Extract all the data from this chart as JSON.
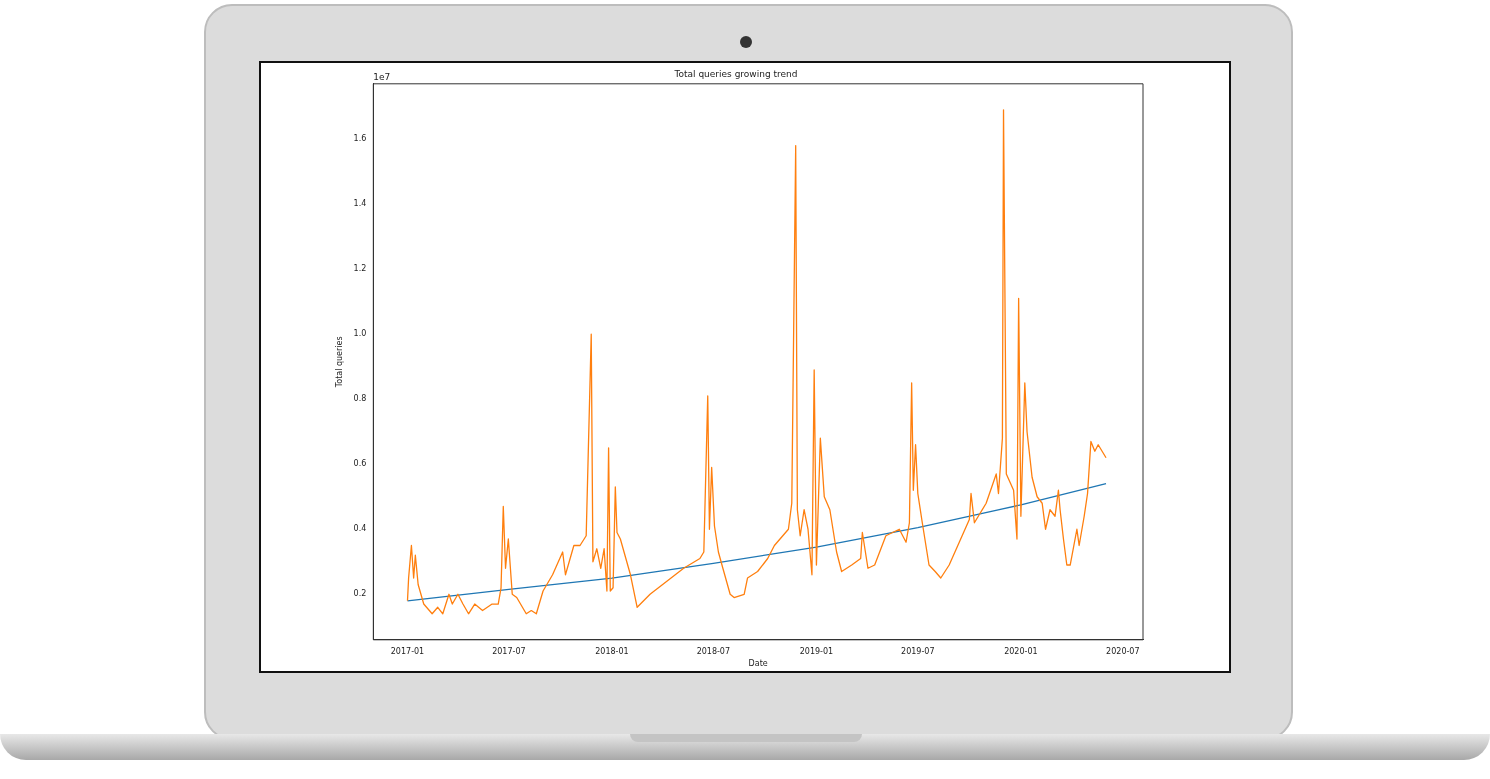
{
  "chart_data": {
    "type": "line",
    "title": "Total queries growing trend",
    "xlabel": "Date",
    "ylabel": "Total queries",
    "annotations": [
      "1e7"
    ],
    "xlim": [
      "2016-11-01",
      "2020-08-06"
    ],
    "xticks": [
      {
        "value": "2017-01",
        "label": "2017-01"
      },
      {
        "value": "2017-07",
        "label": "2017-07"
      },
      {
        "value": "2018-01",
        "label": "2018-01"
      },
      {
        "value": "2018-07",
        "label": "2018-07"
      },
      {
        "value": "2019-01",
        "label": "2019-01"
      },
      {
        "value": "2019-07",
        "label": "2019-07"
      },
      {
        "value": "2020-01",
        "label": "2020-01"
      },
      {
        "value": "2020-07",
        "label": "2020-07"
      }
    ],
    "ylim": [
      0.06,
      1.77
    ],
    "yticks": [
      0.2,
      0.4,
      0.6,
      0.8,
      {
        "value": 1,
        "label": "1.0"
      },
      1.2,
      1.4,
      1.6
    ],
    "legend": false,
    "grid": false,
    "series": [
      {
        "color": "#ff7f0e",
        "x": [
          "2017-01-01",
          "2017-01-03",
          "2017-01-08",
          "2017-01-12",
          "2017-01-15",
          "2017-01-20",
          "2017-01-30",
          "2017-02-14",
          "2017-02-24",
          "2017-03-05",
          "2017-03-16",
          "2017-03-22",
          "2017-04-01",
          "2017-04-10",
          "2017-04-20",
          "2017-05-01",
          "2017-05-15",
          "2017-06-01",
          "2017-06-12",
          "2017-06-17",
          "2017-06-21",
          "2017-06-25",
          "2017-06-30",
          "2017-07-07",
          "2017-07-15",
          "2017-08-01",
          "2017-08-10",
          "2017-08-19",
          "2017-08-31",
          "2017-09-17",
          "2017-10-05",
          "2017-10-10",
          "2017-10-25",
          "2017-11-05",
          "2017-11-16",
          "2017-11-25",
          "2017-11-28",
          "2017-12-05",
          "2017-12-12",
          "2017-12-18",
          "2017-12-23",
          "2017-12-26",
          "2017-12-29",
          "2018-01-03",
          "2018-01-07",
          "2018-01-10",
          "2018-01-16",
          "2018-02-03",
          "2018-02-15",
          "2018-03-10",
          "2018-04-09",
          "2018-05-09",
          "2018-06-07",
          "2018-06-14",
          "2018-06-21",
          "2018-06-24",
          "2018-06-28",
          "2018-07-03",
          "2018-07-10",
          "2018-07-18",
          "2018-07-31",
          "2018-08-07",
          "2018-08-25",
          "2018-08-31",
          "2018-09-18",
          "2018-10-06",
          "2018-10-18",
          "2018-11-12",
          "2018-11-18",
          "2018-11-25",
          "2018-11-28",
          "2018-12-03",
          "2018-12-10",
          "2018-12-17",
          "2018-12-24",
          "2018-12-28",
          "2019-01-01",
          "2019-01-08",
          "2019-01-15",
          "2019-01-25",
          "2019-02-06",
          "2019-02-15",
          "2019-03-05",
          "2019-03-21",
          "2019-03-24",
          "2019-04-03",
          "2019-04-15",
          "2019-05-05",
          "2019-05-29",
          "2019-06-10",
          "2019-06-16",
          "2019-06-20",
          "2019-06-23",
          "2019-06-27",
          "2019-07-01",
          "2019-07-09",
          "2019-07-21",
          "2019-08-01",
          "2019-08-11",
          "2019-08-26",
          "2019-09-13",
          "2019-10-01",
          "2019-10-04",
          "2019-10-10",
          "2019-10-31",
          "2019-11-18",
          "2019-11-22",
          "2019-11-29",
          "2019-12-01",
          "2019-12-06",
          "2019-12-19",
          "2019-12-25",
          "2019-12-28",
          "2020-01-01",
          "2020-01-08",
          "2020-01-12",
          "2020-01-21",
          "2020-01-30",
          "2020-02-08",
          "2020-02-14",
          "2020-02-22",
          "2020-03-02",
          "2020-03-08",
          "2020-03-11",
          "2020-03-17",
          "2020-03-23",
          "2020-03-29",
          "2020-04-10",
          "2020-04-14",
          "2020-04-23",
          "2020-04-29",
          "2020-05-05",
          "2020-05-12",
          "2020-05-18",
          "2020-05-25",
          "2020-06-01"
        ],
        "values": [
          0.18,
          0.25,
          0.35,
          0.25,
          0.32,
          0.23,
          0.17,
          0.14,
          0.16,
          0.14,
          0.2,
          0.17,
          0.2,
          0.17,
          0.14,
          0.17,
          0.15,
          0.17,
          0.17,
          0.22,
          0.47,
          0.28,
          0.37,
          0.2,
          0.19,
          0.14,
          0.15,
          0.14,
          0.21,
          0.26,
          0.33,
          0.26,
          0.35,
          0.35,
          0.38,
          1.0,
          0.3,
          0.34,
          0.28,
          0.34,
          0.21,
          0.65,
          0.21,
          0.22,
          0.53,
          0.39,
          0.37,
          0.26,
          0.16,
          0.2,
          0.24,
          0.28,
          0.31,
          0.33,
          0.81,
          0.4,
          0.59,
          0.41,
          0.33,
          0.28,
          0.2,
          0.19,
          0.2,
          0.25,
          0.27,
          0.31,
          0.35,
          0.4,
          0.48,
          1.58,
          0.46,
          0.38,
          0.46,
          0.4,
          0.26,
          0.89,
          0.29,
          0.68,
          0.5,
          0.46,
          0.33,
          0.27,
          0.29,
          0.31,
          0.39,
          0.28,
          0.29,
          0.38,
          0.4,
          0.36,
          0.42,
          0.85,
          0.52,
          0.66,
          0.51,
          0.42,
          0.29,
          0.27,
          0.25,
          0.29,
          0.36,
          0.43,
          0.51,
          0.42,
          0.48,
          0.57,
          0.51,
          0.68,
          1.69,
          0.57,
          0.52,
          0.37,
          1.11,
          0.44,
          0.85,
          0.7,
          0.56,
          0.5,
          0.48,
          0.4,
          0.46,
          0.44,
          0.52,
          0.46,
          0.37,
          0.29,
          0.29,
          0.4,
          0.35,
          0.44,
          0.51,
          0.67,
          0.64,
          0.66,
          0.64,
          0.62
        ]
      },
      {
        "color": "#1f77b4",
        "x": [
          "2017-01-01",
          "2017-07-01",
          "2018-01-01",
          "2018-07-01",
          "2019-01-01",
          "2019-07-01",
          "2020-01-01",
          "2020-06-01"
        ],
        "values": [
          0.18,
          0.215,
          0.25,
          0.295,
          0.345,
          0.405,
          0.475,
          0.54
        ]
      }
    ]
  }
}
